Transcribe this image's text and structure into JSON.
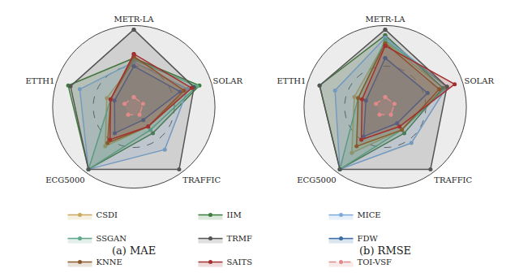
{
  "chart_data": [
    {
      "type": "radar",
      "title": "(a) MAE",
      "categories": [
        "METR-LA",
        "SOLAR",
        "TRAFFIC",
        "ECG5000",
        "ETTH1"
      ],
      "ylim": [
        0,
        1.0
      ],
      "yticks": [
        0.5,
        1.0
      ],
      "tick_labels": "x",
      "grid": true,
      "legend": "bottom",
      "series": [
        {
          "name": "CSDI",
          "color": "#c9aa5c",
          "marker": "circle",
          "values": [
            0.55,
            0.7,
            0.3,
            0.6,
            0.35
          ]
        },
        {
          "name": "IIM",
          "color": "#3f7d3f",
          "marker": "circle",
          "values": [
            0.6,
            0.85,
            0.4,
            0.95,
            0.85
          ]
        },
        {
          "name": "MICE",
          "color": "#7caad8",
          "marker": "circle",
          "values": [
            0.55,
            0.7,
            0.65,
            0.95,
            0.7
          ]
        },
        {
          "name": "SSGAN",
          "color": "#5fa98a",
          "marker": "circle",
          "values": [
            0.58,
            0.82,
            0.35,
            0.95,
            0.3
          ]
        },
        {
          "name": "TRMF",
          "color": "#555555",
          "marker": "circle",
          "values": [
            0.95,
            0.78,
            0.95,
            0.95,
            0.82
          ]
        },
        {
          "name": "FDW",
          "color": "#3a6ea5",
          "marker": "circle",
          "values": [
            0.5,
            0.6,
            0.2,
            0.4,
            0.25
          ]
        },
        {
          "name": "KNNE",
          "color": "#8b5a2b",
          "marker": "circle",
          "values": [
            0.62,
            0.65,
            0.3,
            0.55,
            0.3
          ]
        },
        {
          "name": "SAITS",
          "color": "#a33030",
          "marker": "circle",
          "values": [
            0.65,
            0.75,
            0.3,
            0.5,
            0.3
          ]
        },
        {
          "name": "TOI-VSF",
          "color": "#e08a8a",
          "marker": "circle",
          "line_style": "dash",
          "values": [
            0.12,
            0.12,
            0.12,
            0.12,
            0.12
          ]
        }
      ]
    },
    {
      "type": "radar",
      "title": "(b) RMSE",
      "categories": [
        "METR-LA",
        "SOLAR",
        "TRAFFIC",
        "ECG5000",
        "ETTH1"
      ],
      "ylim": [
        0,
        1.0
      ],
      "yticks": [
        0.5,
        1.0
      ],
      "tick_labels": "x",
      "grid": true,
      "legend": "bottom",
      "series": [
        {
          "name": "CSDI",
          "color": "#c9aa5c",
          "marker": "circle",
          "values": [
            0.8,
            0.75,
            0.35,
            0.7,
            0.4
          ]
        },
        {
          "name": "IIM",
          "color": "#3f7d3f",
          "marker": "circle",
          "values": [
            0.88,
            0.75,
            0.4,
            0.95,
            0.85
          ]
        },
        {
          "name": "MICE",
          "color": "#7caad8",
          "marker": "circle",
          "values": [
            0.85,
            0.8,
            0.55,
            0.95,
            0.65
          ]
        },
        {
          "name": "SSGAN",
          "color": "#5fa98a",
          "marker": "circle",
          "values": [
            0.82,
            0.8,
            0.35,
            0.95,
            0.35
          ]
        },
        {
          "name": "TRMF",
          "color": "#555555",
          "marker": "circle",
          "values": [
            0.95,
            0.8,
            0.95,
            0.95,
            0.85
          ]
        },
        {
          "name": "FDW",
          "color": "#3a6ea5",
          "marker": "circle",
          "values": [
            0.6,
            0.55,
            0.25,
            0.45,
            0.25
          ]
        },
        {
          "name": "KNNE",
          "color": "#8b5a2b",
          "marker": "circle",
          "values": [
            0.78,
            0.7,
            0.35,
            0.6,
            0.35
          ]
        },
        {
          "name": "SAITS",
          "color": "#a33030",
          "marker": "circle",
          "values": [
            0.75,
            0.9,
            0.3,
            0.5,
            0.3
          ]
        },
        {
          "name": "TOI-VSF",
          "color": "#e08a8a",
          "marker": "circle",
          "line_style": "dash",
          "values": [
            0.12,
            0.12,
            0.12,
            0.12,
            0.12
          ]
        }
      ]
    }
  ]
}
